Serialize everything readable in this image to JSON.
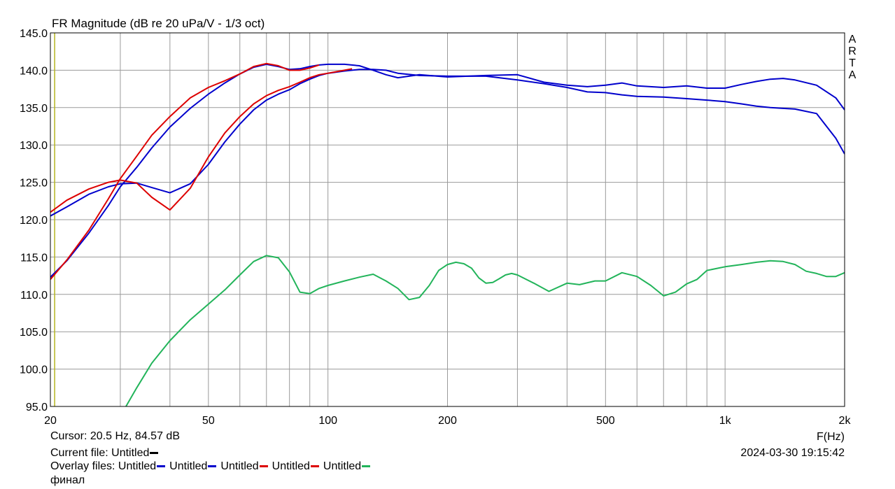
{
  "chart_data": {
    "type": "line",
    "title": "FR Magnitude (dB re 20 uPa/V - 1/3 oct)",
    "xlabel": "F(Hz)",
    "ylabel": "",
    "x_scale": "log",
    "xlim": [
      20,
      2000
    ],
    "ylim": [
      95,
      145
    ],
    "y_ticks": [
      95,
      100,
      105,
      110,
      115,
      120,
      125,
      130,
      135,
      140,
      145
    ],
    "y_tick_labels": [
      "95.0",
      "100.0",
      "105.0",
      "110.0",
      "115.0",
      "120.0",
      "125.0",
      "130.0",
      "135.0",
      "140.0",
      "145.0"
    ],
    "x_ticks": [
      20,
      50,
      100,
      200,
      500,
      1000,
      2000
    ],
    "x_tick_labels": [
      "20",
      "50",
      "100",
      "200",
      "500",
      "1k",
      "2k"
    ],
    "grid": true,
    "cursor_line_x": 20.5,
    "side_label": [
      "A",
      "R",
      "T",
      "A"
    ],
    "series": [
      {
        "color": "#0000cc",
        "x": [
          20,
          22,
          25,
          28,
          30,
          33,
          36,
          40,
          45,
          50,
          55,
          60,
          65,
          70,
          75,
          80,
          85,
          90,
          95,
          100,
          110,
          120,
          130,
          140,
          150,
          170,
          200,
          250,
          300,
          350,
          400,
          450,
          500,
          550,
          600,
          700,
          800,
          900,
          1000,
          1100,
          1200,
          1300,
          1400,
          1500,
          1700,
          1900,
          2000
        ],
        "y": [
          120.5,
          121.7,
          123.4,
          124.4,
          124.8,
          124.9,
          124.3,
          123.6,
          124.8,
          127.4,
          130.4,
          132.8,
          134.7,
          136.0,
          136.8,
          137.4,
          138.2,
          138.8,
          139.3,
          139.6,
          139.9,
          140.1,
          140.1,
          140.0,
          139.6,
          139.3,
          139.2,
          139.2,
          138.7,
          138.2,
          137.7,
          137.1,
          137.0,
          136.7,
          136.5,
          136.4,
          136.2,
          136.0,
          135.8,
          135.5,
          135.2,
          135.0,
          134.9,
          134.8,
          134.2,
          130.9,
          128.8
        ]
      },
      {
        "color": "#0000cc",
        "x": [
          20,
          22,
          25,
          28,
          30,
          33,
          36,
          40,
          45,
          50,
          55,
          60,
          65,
          70,
          75,
          80,
          85,
          90,
          95,
          100,
          110,
          120,
          130,
          140,
          150,
          170,
          200,
          250,
          300,
          350,
          400,
          450,
          500,
          550,
          600,
          700,
          800,
          900,
          1000,
          1100,
          1200,
          1300,
          1400,
          1500,
          1700,
          1900,
          2000
        ],
        "y": [
          112.3,
          114.5,
          118.2,
          121.9,
          124.4,
          127.0,
          129.6,
          132.4,
          134.9,
          136.8,
          138.3,
          139.5,
          140.4,
          140.8,
          140.5,
          140.1,
          140.2,
          140.5,
          140.7,
          140.8,
          140.8,
          140.6,
          140.0,
          139.4,
          139.0,
          139.4,
          139.1,
          139.3,
          139.4,
          138.4,
          138.0,
          137.8,
          138.0,
          138.3,
          137.9,
          137.7,
          137.9,
          137.6,
          137.6,
          138.1,
          138.5,
          138.8,
          138.9,
          138.7,
          138.0,
          136.3,
          134.7
        ]
      },
      {
        "color": "#dd0000",
        "x": [
          20,
          22,
          25,
          28,
          30,
          33,
          36,
          40,
          45,
          50,
          55,
          60,
          65,
          70,
          75,
          80,
          85,
          90,
          95,
          100,
          105,
          110,
          115
        ],
        "y": [
          121.0,
          122.6,
          124.1,
          125.0,
          125.3,
          124.9,
          123.0,
          121.3,
          124.2,
          128.4,
          131.6,
          133.8,
          135.5,
          136.6,
          137.3,
          137.8,
          138.4,
          139.0,
          139.4,
          139.6,
          139.8,
          140.0,
          140.2
        ]
      },
      {
        "color": "#dd0000",
        "x": [
          20,
          22,
          25,
          28,
          30,
          33,
          36,
          40,
          45,
          50,
          55,
          60,
          65,
          70,
          75,
          80,
          85,
          90,
          95
        ],
        "y": [
          112.0,
          114.6,
          118.6,
          122.8,
          125.5,
          128.5,
          131.3,
          133.8,
          136.3,
          137.7,
          138.6,
          139.5,
          140.5,
          140.9,
          140.6,
          140.0,
          140.0,
          140.3,
          140.7
        ]
      },
      {
        "color": "#22b45a",
        "x": [
          31,
          33,
          36,
          40,
          45,
          50,
          55,
          60,
          65,
          70,
          75,
          80,
          85,
          90,
          95,
          100,
          110,
          120,
          130,
          140,
          150,
          160,
          170,
          180,
          190,
          200,
          210,
          220,
          230,
          240,
          250,
          260,
          270,
          280,
          290,
          300,
          330,
          360,
          400,
          430,
          470,
          500,
          550,
          600,
          650,
          700,
          750,
          800,
          850,
          900,
          1000,
          1100,
          1200,
          1300,
          1400,
          1500,
          1600,
          1700,
          1800,
          1900,
          2000
        ],
        "y": [
          95.0,
          97.5,
          100.8,
          103.8,
          106.6,
          108.7,
          110.6,
          112.6,
          114.4,
          115.2,
          114.9,
          113.0,
          110.3,
          110.1,
          110.8,
          111.2,
          111.8,
          112.3,
          112.7,
          111.8,
          110.8,
          109.3,
          109.6,
          111.2,
          113.2,
          114.0,
          114.3,
          114.1,
          113.5,
          112.2,
          111.5,
          111.6,
          112.1,
          112.6,
          112.8,
          112.6,
          111.5,
          110.4,
          111.5,
          111.3,
          111.8,
          111.8,
          112.9,
          112.4,
          111.2,
          109.8,
          110.3,
          111.4,
          112.0,
          113.2,
          113.7,
          114.0,
          114.3,
          114.5,
          114.4,
          114.0,
          113.1,
          112.8,
          112.4,
          112.4,
          112.9
        ]
      }
    ]
  },
  "footer": {
    "cursor": "Cursor: 20.5 Hz, 84.57 dB",
    "current_file_label": "Current file: Untitled",
    "current_file_color": "#000000",
    "overlay_label": "Overlay files:",
    "overlays": [
      {
        "name": "Untitled",
        "color": "#0000cc"
      },
      {
        "name": "Untitled",
        "color": "#0000cc"
      },
      {
        "name": "Untitled",
        "color": "#dd0000"
      },
      {
        "name": "Untitled",
        "color": "#dd0000"
      },
      {
        "name": "Untitled",
        "color": "#22b45a"
      }
    ],
    "overlay_wrap": "финал",
    "timestamp": "2024-03-30   19:15:42"
  }
}
